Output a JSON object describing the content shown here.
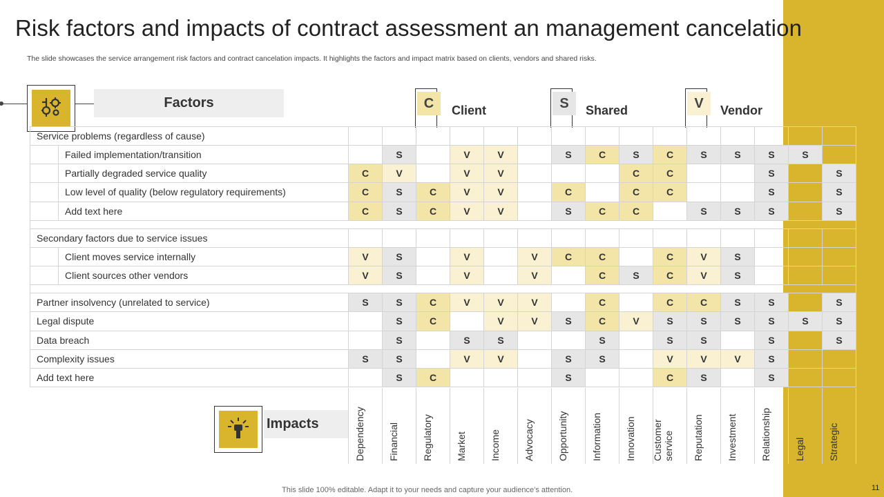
{
  "slide": {
    "title": "Risk factors and impacts of contract assessment an management cancelation",
    "subtitle": "The slide showcases the service arrangement risk factors and contract cancelation impacts. It highlights the factors and impact matrix based on clients, vendors and shared risks.",
    "footer": "This slide 100% editable. Adapt it to your needs and capture your audience’s attention.",
    "page_number": "11"
  },
  "colors": {
    "accent": "#d9b52d",
    "client_cell": "#f3e4a7",
    "shared_cell": "#e6e6e6",
    "vendor_cell": "#faf1d3"
  },
  "labels": {
    "factors": "Factors",
    "impacts": "Impacts"
  },
  "icons": {
    "factors_icon": "gears-icon",
    "impacts_icon": "fist-burst-icon"
  },
  "groups": [
    {
      "badge": "C",
      "name": "Client"
    },
    {
      "badge": "S",
      "name": "Shared"
    },
    {
      "badge": "V",
      "name": "Vendor"
    }
  ],
  "impacts": [
    "Dependency",
    "Financial",
    "Regulatory",
    "Market",
    "Income",
    "Advocacy",
    "Opportunity",
    "Information",
    "Innovation",
    "Customer service",
    "Reputation",
    "Investment",
    "Relationship",
    "Legal",
    "Strategic"
  ],
  "rows": [
    {
      "type": "category",
      "label": "Service problems (regardless of cause)",
      "cells": [
        "",
        "",
        "",
        "",
        "",
        "",
        "",
        "",
        "",
        "",
        "",
        "",
        "",
        "",
        ""
      ]
    },
    {
      "type": "sub",
      "label": "Failed implementation/transition",
      "cells": [
        "",
        "S",
        "",
        "V",
        "V",
        "",
        "S",
        "C",
        "S",
        "C",
        "S",
        "S",
        "S",
        "S",
        ""
      ]
    },
    {
      "type": "sub",
      "label": "Partially degraded service quality",
      "cells": [
        "C",
        "V",
        "",
        "V",
        "V",
        "",
        "",
        "",
        "C",
        "C",
        "",
        "",
        "S",
        "",
        "S"
      ]
    },
    {
      "type": "sub",
      "label": "Low level of quality (below regulatory requirements)",
      "cells": [
        "C",
        "S",
        "C",
        "V",
        "V",
        "",
        "C",
        "",
        "C",
        "C",
        "",
        "",
        "S",
        "",
        "S"
      ]
    },
    {
      "type": "sub",
      "label": "Add text here",
      "cells": [
        "C",
        "S",
        "C",
        "V",
        "V",
        "",
        "S",
        "C",
        "C",
        "",
        "S",
        "S",
        "S",
        "",
        "S"
      ]
    },
    {
      "type": "spacer"
    },
    {
      "type": "category",
      "label": "Secondary factors due to service issues",
      "cells": [
        "",
        "",
        "",
        "",
        "",
        "",
        "",
        "",
        "",
        "",
        "",
        "",
        "",
        "",
        ""
      ]
    },
    {
      "type": "sub",
      "label": "Client moves service internally",
      "cells": [
        "V",
        "S",
        "",
        "V",
        "",
        "V",
        "C",
        "C",
        "",
        "C",
        "V",
        "S",
        "",
        "",
        ""
      ]
    },
    {
      "type": "sub",
      "label": "Client sources other vendors",
      "cells": [
        "V",
        "S",
        "",
        "V",
        "",
        "V",
        "",
        "C",
        "S",
        "C",
        "V",
        "S",
        "",
        "",
        ""
      ]
    },
    {
      "type": "spacer"
    },
    {
      "type": "category",
      "label": "Partner insolvency (unrelated to service)",
      "cells": [
        "S",
        "S",
        "C",
        "V",
        "V",
        "V",
        "",
        "C",
        "",
        "C",
        "C",
        "S",
        "S",
        "",
        "S"
      ]
    },
    {
      "type": "category",
      "label": "Legal dispute",
      "cells": [
        "",
        "S",
        "C",
        "",
        "V",
        "V",
        "S",
        "C",
        "V",
        "S",
        "S",
        "S",
        "S",
        "S",
        "S"
      ]
    },
    {
      "type": "category",
      "label": "Data breach",
      "cells": [
        "",
        "S",
        "",
        "S",
        "S",
        "",
        "",
        "S",
        "",
        "S",
        "S",
        "",
        "S",
        "",
        "S"
      ]
    },
    {
      "type": "category",
      "label": "Complexity issues",
      "cells": [
        "S",
        "S",
        "",
        "V",
        "V",
        "",
        "S",
        "S",
        "",
        "V",
        "V",
        "V",
        "S",
        "",
        ""
      ]
    },
    {
      "type": "category",
      "label": "Add text here",
      "cells": [
        "",
        "S",
        "C",
        "",
        "",
        "",
        "S",
        "",
        "",
        "C",
        "S",
        "",
        "S",
        "",
        ""
      ]
    }
  ]
}
